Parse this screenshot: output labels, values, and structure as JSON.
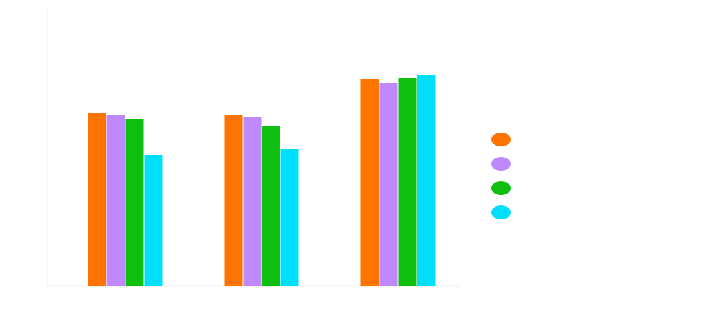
{
  "chart_data": {
    "type": "bar",
    "title": "",
    "xlabel": "",
    "ylabel": "",
    "categories": [
      "",
      "",
      ""
    ],
    "ylim": [
      0,
      400
    ],
    "grid": false,
    "legend_position": "right",
    "series": [
      {
        "color": "#ff7300",
        "values": [
          249,
          246,
          298
        ]
      },
      {
        "color": "#bf88fc",
        "values": [
          246,
          243,
          292
        ]
      },
      {
        "color": "#0fbf0f",
        "values": [
          240,
          231,
          300
        ]
      },
      {
        "color": "#00dff9",
        "values": [
          189,
          198,
          304
        ]
      }
    ]
  }
}
